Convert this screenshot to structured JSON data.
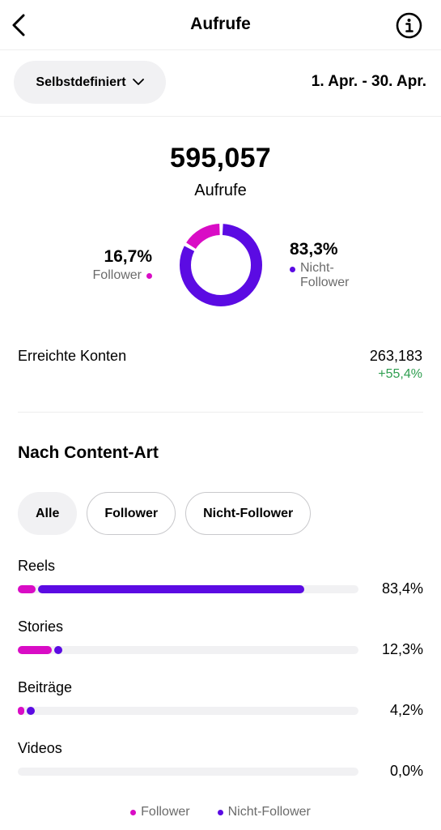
{
  "colors": {
    "follower": "#d90cc5",
    "non_follower": "#5b0be3",
    "positive": "#2e9e4f",
    "track": "#f1f1f3"
  },
  "header": {
    "title": "Aufrufe",
    "back_icon": "chevron-left-icon",
    "info_icon": "info-circle-icon"
  },
  "filter": {
    "range_button_label": "Selbstdefiniert",
    "date_range": "1. Apr. - 30. Apr."
  },
  "summary": {
    "total_views": "595,057",
    "total_label": "Aufrufe"
  },
  "donut": {
    "follower": {
      "percent": "16,7%",
      "label": "Follower",
      "value": 0.167
    },
    "non_follower": {
      "percent": "83,3%",
      "label_line1": "Nicht-",
      "label_line2": "Follower",
      "value": 0.833
    }
  },
  "reach": {
    "label": "Erreichte Konten",
    "value": "263,183",
    "change": "+55,4%"
  },
  "content_type": {
    "title": "Nach Content-Art",
    "tabs": [
      "Alle",
      "Follower",
      "Nicht-Follower"
    ],
    "active_tab": "Alle",
    "rows": [
      {
        "label": "Reels",
        "percent": "83,4%",
        "follower": 0.052,
        "non_follower": 0.782
      },
      {
        "label": "Stories",
        "percent": "12,3%",
        "follower": 0.1,
        "non_follower": 0.023
      },
      {
        "label": "Beiträge",
        "percent": "4,2%",
        "follower": 0.019,
        "non_follower": 0.023
      },
      {
        "label": "Videos",
        "percent": "0,0%",
        "follower": 0,
        "non_follower": 0
      }
    ]
  },
  "legend": {
    "follower": "Follower",
    "non_follower": "Nicht-Follower"
  }
}
